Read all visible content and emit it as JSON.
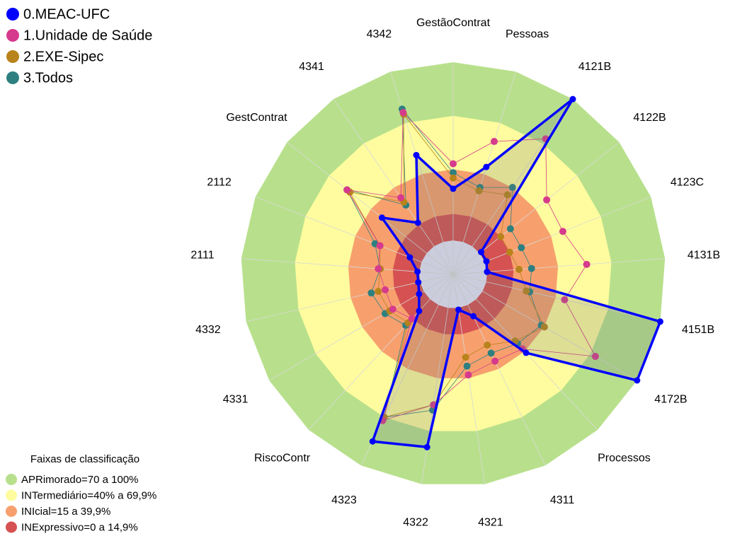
{
  "chart_data": {
    "type": "radar",
    "categories": [
      "GestãoContrat",
      "Pessoas",
      "4121B",
      "4122B",
      "4123C",
      "4131B",
      "4151B",
      "4172B",
      "Processos",
      "4311",
      "4321",
      "4322",
      "4323",
      "RiscoContr",
      "4331",
      "4332",
      "2111",
      "2112",
      "GestContrat",
      "4341",
      "4342"
    ],
    "rlim": [
      0,
      100
    ],
    "series": [
      {
        "name": "0.MEAC-UFC",
        "color": "#0000ff",
        "values": [
          29,
          44,
          100,
          1,
          1,
          0,
          100,
          100,
          41,
          7,
          1,
          79,
          85,
          9,
          3,
          1,
          1,
          7,
          32,
          16,
          51
        ]
      },
      {
        "name": "1.Unidade de Saúde",
        "color": "#d63a8c",
        "values": [
          43,
          59,
          73,
          48,
          47,
          56,
          45,
          73,
          38,
          35,
          38,
          55,
          72,
          15,
          20,
          20,
          23,
          25,
          57,
          33,
          76
        ]
      },
      {
        "name": "2.EXE-Sipec",
        "color": "#b8831a",
        "values": [
          35,
          30,
          35,
          15,
          15,
          18,
          23,
          40,
          32,
          25,
          28,
          55,
          70,
          18,
          22,
          24,
          22,
          25,
          55,
          30,
          75
        ]
      },
      {
        "name": "3.Todos",
        "color": "#2e8080",
        "values": [
          38,
          32,
          40,
          22,
          22,
          25,
          25,
          38,
          34,
          30,
          33,
          58,
          70,
          20,
          25,
          28,
          22,
          28,
          57,
          28,
          78
        ]
      }
    ],
    "band_title": "Faixas de classificação",
    "bands": [
      {
        "label": "APRimorado=70 a 100%",
        "from": 70,
        "to": 100,
        "color": "#b8e08c"
      },
      {
        "label": "INTermediário=40% a 69,9%",
        "from": 40,
        "to": 69.9,
        "color": "#fefc9e"
      },
      {
        "label": "INIcial=15 a 39,9%",
        "from": 15,
        "to": 39.9,
        "color": "#f7a06e"
      },
      {
        "label": "INExpressivo=0 a 14,9%",
        "from": 0,
        "to": 14.9,
        "color": "#d65252"
      }
    ]
  }
}
